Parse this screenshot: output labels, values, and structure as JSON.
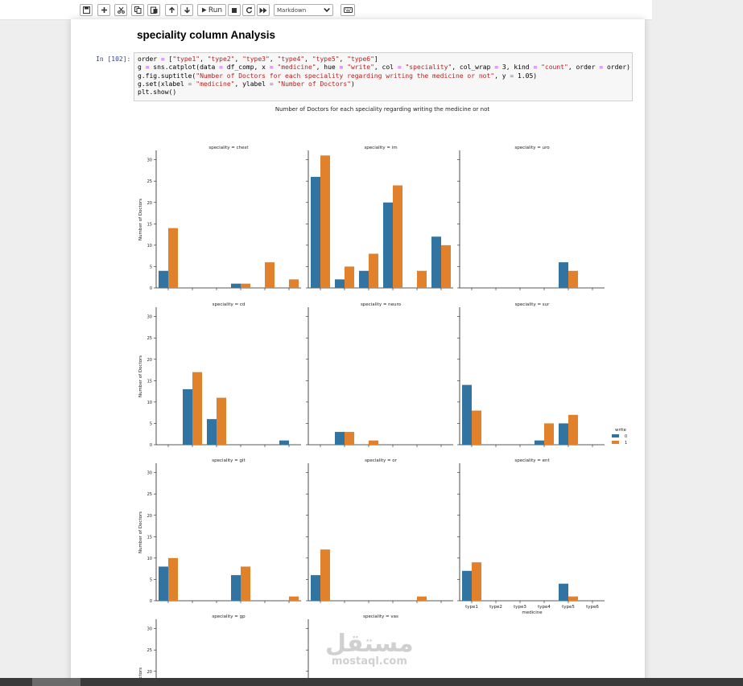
{
  "toolbar": {
    "buttons": [
      "save",
      "insert-cell",
      "cut",
      "copy",
      "paste",
      "move-up",
      "move-down",
      "run",
      "interrupt",
      "restart",
      "restart-run-all"
    ],
    "run_label": "Run",
    "cell_type": "Markdown"
  },
  "markdown": {
    "heading": "speciality column Analysis"
  },
  "code_cell": {
    "prompt": "In [102]:",
    "lines": [
      "order = [\"type1\", \"type2\", \"type3\", \"type4\", \"type5\", \"type6\"]",
      "g = sns.catplot(data = df_comp, x = \"medicine\", hue = \"write\", col = \"speciality\", col_wrap = 3, kind = \"count\", order = order)",
      "g.fig.suptitle(\"Number of Doctors for each speciality regarding writing the medicine or not\", y = 1.05)",
      "g.set(xlabel = \"medicine\", ylabel = \"Number of Doctors\")",
      "plt.show()"
    ]
  },
  "chart_data": {
    "type": "bar",
    "suptitle": "Number of Doctors for each speciality regarding writing the medicine or not",
    "categories": [
      "type1",
      "type2",
      "type3",
      "type4",
      "type5",
      "type6"
    ],
    "xlabel": "medicine",
    "ylabel": "Number of Doctors",
    "ylim": [
      0,
      32
    ],
    "yticks": [
      0,
      5,
      10,
      15,
      20,
      25,
      30
    ],
    "legend": {
      "title": "write",
      "entries": [
        "0",
        "1"
      ],
      "placement": "right"
    },
    "colors": {
      "0": "#3274a1",
      "1": "#e1812c"
    },
    "facets": [
      {
        "title": "speciality = chest",
        "write0": [
          4,
          0,
          0,
          1,
          0,
          0
        ],
        "write1": [
          14,
          0,
          0,
          1,
          6,
          2
        ]
      },
      {
        "title": "speciality = im",
        "write0": [
          26,
          2,
          4,
          20,
          0,
          12
        ],
        "write1": [
          31,
          5,
          8,
          24,
          4,
          10
        ]
      },
      {
        "title": "speciality = uro",
        "write0": [
          0,
          0,
          0,
          0,
          6,
          0
        ],
        "write1": [
          0,
          0,
          0,
          0,
          4,
          0
        ]
      },
      {
        "title": "speciality = cd",
        "write0": [
          0,
          13,
          6,
          0,
          0,
          1
        ],
        "write1": [
          0,
          17,
          11,
          0,
          0,
          0
        ]
      },
      {
        "title": "speciality = neuro",
        "write0": [
          0,
          3,
          0,
          0,
          0,
          0
        ],
        "write1": [
          0,
          3,
          1,
          0,
          0,
          0
        ]
      },
      {
        "title": "speciality = sur",
        "write0": [
          14,
          0,
          0,
          1,
          5,
          0
        ],
        "write1": [
          8,
          0,
          0,
          5,
          7,
          0
        ]
      },
      {
        "title": "speciality = git",
        "write0": [
          8,
          0,
          0,
          6,
          0,
          0
        ],
        "write1": [
          10,
          0,
          0,
          8,
          0,
          1
        ]
      },
      {
        "title": "speciality = or",
        "write0": [
          6,
          0,
          0,
          0,
          0,
          0
        ],
        "write1": [
          12,
          0,
          0,
          0,
          1,
          0
        ]
      },
      {
        "title": "speciality = ent",
        "write0": [
          7,
          0,
          0,
          0,
          4,
          0
        ],
        "write1": [
          9,
          0,
          0,
          0,
          1,
          0
        ]
      },
      {
        "title": "speciality = gp",
        "write0": [],
        "write1": []
      },
      {
        "title": "speciality = vas",
        "write0": [],
        "write1": []
      }
    ]
  },
  "watermark": {
    "arabic": "مستقل",
    "latin": "mostaql.com"
  }
}
